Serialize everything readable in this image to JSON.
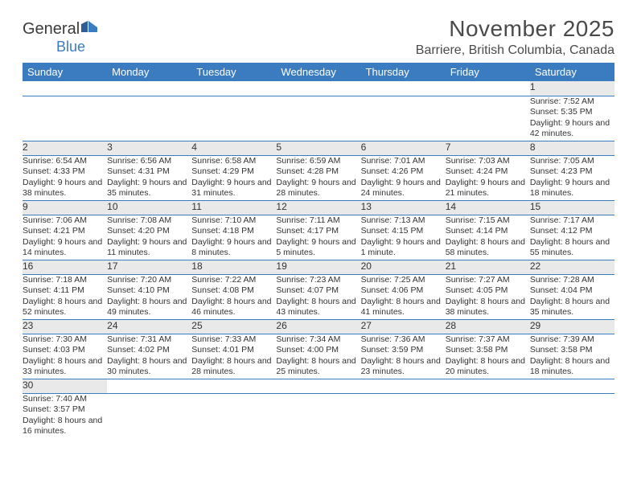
{
  "logo": {
    "text1": "General",
    "text2": "Blue"
  },
  "title": "November 2025",
  "location": "Barriere, British Columbia, Canada",
  "colors": {
    "header_bg": "#3b7bbf",
    "header_text": "#ffffff",
    "daynum_bg": "#e9e9e9",
    "border": "#3b7bbf",
    "text": "#333333",
    "title_color": "#4a4a4a"
  },
  "daysOfWeek": [
    "Sunday",
    "Monday",
    "Tuesday",
    "Wednesday",
    "Thursday",
    "Friday",
    "Saturday"
  ],
  "weeks": [
    {
      "nums": [
        "",
        "",
        "",
        "",
        "",
        "",
        "1"
      ],
      "cells": [
        "",
        "",
        "",
        "",
        "",
        "",
        "Sunrise: 7:52 AM\nSunset: 5:35 PM\nDaylight: 9 hours and 42 minutes."
      ]
    },
    {
      "nums": [
        "2",
        "3",
        "4",
        "5",
        "6",
        "7",
        "8"
      ],
      "cells": [
        "Sunrise: 6:54 AM\nSunset: 4:33 PM\nDaylight: 9 hours and 38 minutes.",
        "Sunrise: 6:56 AM\nSunset: 4:31 PM\nDaylight: 9 hours and 35 minutes.",
        "Sunrise: 6:58 AM\nSunset: 4:29 PM\nDaylight: 9 hours and 31 minutes.",
        "Sunrise: 6:59 AM\nSunset: 4:28 PM\nDaylight: 9 hours and 28 minutes.",
        "Sunrise: 7:01 AM\nSunset: 4:26 PM\nDaylight: 9 hours and 24 minutes.",
        "Sunrise: 7:03 AM\nSunset: 4:24 PM\nDaylight: 9 hours and 21 minutes.",
        "Sunrise: 7:05 AM\nSunset: 4:23 PM\nDaylight: 9 hours and 18 minutes."
      ]
    },
    {
      "nums": [
        "9",
        "10",
        "11",
        "12",
        "13",
        "14",
        "15"
      ],
      "cells": [
        "Sunrise: 7:06 AM\nSunset: 4:21 PM\nDaylight: 9 hours and 14 minutes.",
        "Sunrise: 7:08 AM\nSunset: 4:20 PM\nDaylight: 9 hours and 11 minutes.",
        "Sunrise: 7:10 AM\nSunset: 4:18 PM\nDaylight: 9 hours and 8 minutes.",
        "Sunrise: 7:11 AM\nSunset: 4:17 PM\nDaylight: 9 hours and 5 minutes.",
        "Sunrise: 7:13 AM\nSunset: 4:15 PM\nDaylight: 9 hours and 1 minute.",
        "Sunrise: 7:15 AM\nSunset: 4:14 PM\nDaylight: 8 hours and 58 minutes.",
        "Sunrise: 7:17 AM\nSunset: 4:12 PM\nDaylight: 8 hours and 55 minutes."
      ]
    },
    {
      "nums": [
        "16",
        "17",
        "18",
        "19",
        "20",
        "21",
        "22"
      ],
      "cells": [
        "Sunrise: 7:18 AM\nSunset: 4:11 PM\nDaylight: 8 hours and 52 minutes.",
        "Sunrise: 7:20 AM\nSunset: 4:10 PM\nDaylight: 8 hours and 49 minutes.",
        "Sunrise: 7:22 AM\nSunset: 4:08 PM\nDaylight: 8 hours and 46 minutes.",
        "Sunrise: 7:23 AM\nSunset: 4:07 PM\nDaylight: 8 hours and 43 minutes.",
        "Sunrise: 7:25 AM\nSunset: 4:06 PM\nDaylight: 8 hours and 41 minutes.",
        "Sunrise: 7:27 AM\nSunset: 4:05 PM\nDaylight: 8 hours and 38 minutes.",
        "Sunrise: 7:28 AM\nSunset: 4:04 PM\nDaylight: 8 hours and 35 minutes."
      ]
    },
    {
      "nums": [
        "23",
        "24",
        "25",
        "26",
        "27",
        "28",
        "29"
      ],
      "cells": [
        "Sunrise: 7:30 AM\nSunset: 4:03 PM\nDaylight: 8 hours and 33 minutes.",
        "Sunrise: 7:31 AM\nSunset: 4:02 PM\nDaylight: 8 hours and 30 minutes.",
        "Sunrise: 7:33 AM\nSunset: 4:01 PM\nDaylight: 8 hours and 28 minutes.",
        "Sunrise: 7:34 AM\nSunset: 4:00 PM\nDaylight: 8 hours and 25 minutes.",
        "Sunrise: 7:36 AM\nSunset: 3:59 PM\nDaylight: 8 hours and 23 minutes.",
        "Sunrise: 7:37 AM\nSunset: 3:58 PM\nDaylight: 8 hours and 20 minutes.",
        "Sunrise: 7:39 AM\nSunset: 3:58 PM\nDaylight: 8 hours and 18 minutes."
      ]
    },
    {
      "nums": [
        "30",
        "",
        "",
        "",
        "",
        "",
        ""
      ],
      "cells": [
        "Sunrise: 7:40 AM\nSunset: 3:57 PM\nDaylight: 8 hours and 16 minutes.",
        "",
        "",
        "",
        "",
        "",
        ""
      ]
    }
  ]
}
